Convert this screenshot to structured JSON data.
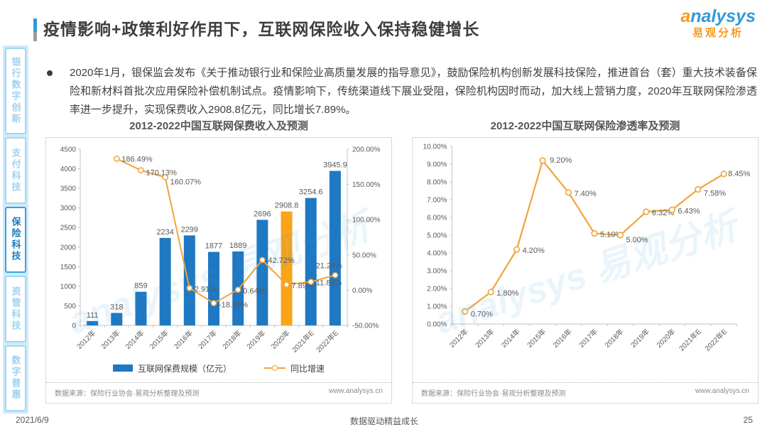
{
  "page": {
    "title": "疫情影响+政策利好作用下，互联网保险收入保持稳健增长",
    "logo": {
      "brand": "analysys",
      "brand_cn": "易观分析"
    },
    "bullet_text": "2020年1月，银保监会发布《关于推动银行业和保险业高质量发展的指导意见》，鼓励保险机构创新发展科技保险，推进首台（套）重大技术装备保险和新材料首批次应用保险补偿机制试点。疫情影响下，传统渠道线下展业受阻，保险机构因时而动，加大线上营销力度，2020年互联网保险渗透率进一步提升，实现保费收入2908.8亿元，同比增长7.89%。",
    "watermark": "analysys 易观分析",
    "footer": {
      "date": "2021/6/9",
      "slogan": "数据驱动精益成长",
      "page_number": "25"
    }
  },
  "sidebar": {
    "items": [
      {
        "label": "银行数字创新",
        "active": false
      },
      {
        "label": "支付科技",
        "active": false
      },
      {
        "label": "保险科技",
        "active": true
      },
      {
        "label": "资管科技",
        "active": false
      },
      {
        "label": "数字普惠",
        "active": false
      }
    ]
  },
  "colors": {
    "bar_blue": "#1e78c2",
    "bar_highlight": "#faa41a",
    "line_orange": "#f0a43e",
    "brand_blue": "#2f9cd9",
    "brand_orange": "#f59b22",
    "sidebar_active": "#1a7abc"
  },
  "chart_data": [
    {
      "type": "bar",
      "title": "2012-2022中国互联网保费收入及预测",
      "categories": [
        "2012年",
        "2013年",
        "2014年",
        "2015年",
        "2016年",
        "2017年",
        "2018年",
        "2019年",
        "2020年",
        "2021年E",
        "2022年E"
      ],
      "series": [
        {
          "name": "互联网保费规模（亿元）",
          "type": "bar",
          "values": [
            111,
            318,
            859,
            2234,
            2299,
            1877,
            1889,
            2696,
            2908.8,
            3254.6,
            3945.9
          ],
          "labels": [
            "111",
            "318",
            "859",
            "2234",
            "2299",
            "1877",
            "1889",
            "2696",
            "2908.8",
            "3254.6",
            "3945.9"
          ],
          "highlight_index": 8
        },
        {
          "name": "同比增速",
          "type": "line",
          "values": [
            null,
            186.49,
            170.13,
            160.07,
            2.91,
            -18.36,
            0.64,
            42.72,
            7.89,
            11.89,
            21.24
          ],
          "labels": [
            "",
            "186.49%",
            "170.13%",
            "160.07%",
            "2.91%",
            "-18.36%",
            "0.64%",
            "42.72%",
            "7.89%",
            "11.89%",
            "21.24%"
          ]
        }
      ],
      "left_axis": {
        "min": 0,
        "max": 4500,
        "step": 500
      },
      "right_axis": {
        "min": -50,
        "max": 200,
        "step": 50,
        "suffix": "%"
      },
      "legend_position": "bottom",
      "grid": false,
      "source": "数据来源：保险行业协会·易观分析整理及预测",
      "site": "www.analysys.cn"
    },
    {
      "type": "line",
      "title": "2012-2022中国互联网保险渗透率及预测",
      "categories": [
        "2012年",
        "2013年",
        "2014年",
        "2015年",
        "2016年",
        "2017年",
        "2018年",
        "2019年",
        "2020年",
        "2021年E",
        "2022年E"
      ],
      "values": [
        0.7,
        1.8,
        4.2,
        9.2,
        7.4,
        5.1,
        5.0,
        6.32,
        6.43,
        7.58,
        8.45
      ],
      "labels": [
        "0.70%",
        "1.80%",
        "4.20%",
        "9.20%",
        "7.40%",
        "5.10%",
        "5.00%",
        "6.32%",
        "6.43%",
        "7.58%",
        "8.45%"
      ],
      "y_axis": {
        "min": 0,
        "max": 10,
        "step": 1,
        "suffix": "%"
      },
      "grid": false,
      "source": "数据来源：保险行业协会·易观分析整理及预测",
      "site": "www.analysys.cn"
    }
  ]
}
